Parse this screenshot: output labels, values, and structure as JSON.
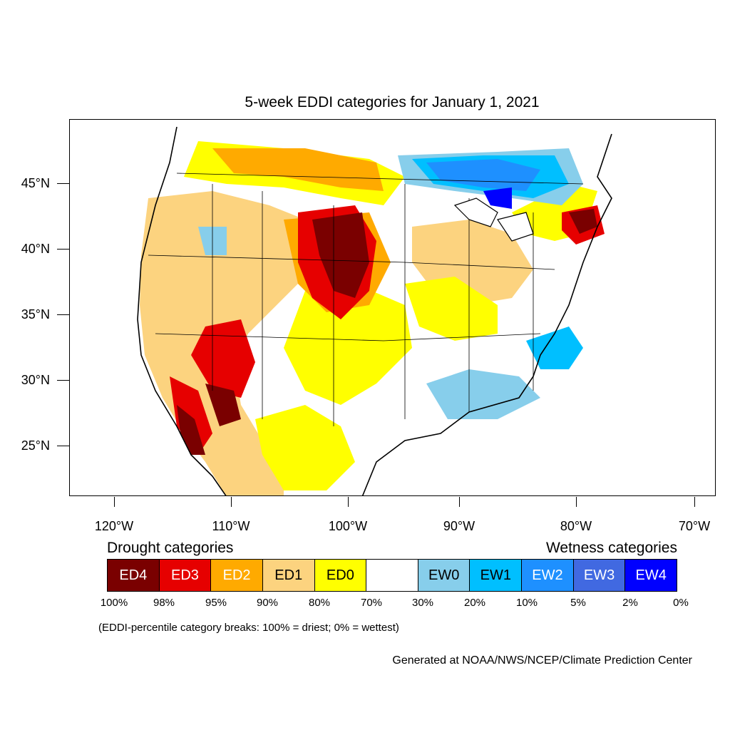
{
  "title": "5-week EDDI categories for January 1, 2021",
  "lat_labels": [
    "45°N",
    "40°N",
    "35°N",
    "30°N",
    "25°N"
  ],
  "lon_labels": [
    "120°W",
    "110°W",
    "100°W",
    "90°W",
    "80°W",
    "70°W"
  ],
  "drought_heading": "Drought categories",
  "wetness_heading": "Wetness categories",
  "categories": [
    {
      "label": "ED4",
      "color": "#7a0000",
      "text_color": "#ffffff"
    },
    {
      "label": "ED3",
      "color": "#e60000",
      "text_color": "#ffffff"
    },
    {
      "label": "ED2",
      "color": "#ffaa00",
      "text_color": "#ffffff"
    },
    {
      "label": "ED1",
      "color": "#fcd37f",
      "text_color": "#000000"
    },
    {
      "label": "ED0",
      "color": "#ffff00",
      "text_color": "#000000"
    },
    {
      "label": "",
      "color": "#ffffff",
      "text_color": "#000000"
    },
    {
      "label": "EW0",
      "color": "#87ceeb",
      "text_color": "#000000"
    },
    {
      "label": "EW1",
      "color": "#00bfff",
      "text_color": "#000000"
    },
    {
      "label": "EW2",
      "color": "#1e90ff",
      "text_color": "#ffffff"
    },
    {
      "label": "EW3",
      "color": "#4169e1",
      "text_color": "#ffffff"
    },
    {
      "label": "EW4",
      "color": "#0000ff",
      "text_color": "#ffffff"
    }
  ],
  "percent_breaks": [
    "100%",
    "98%",
    "95%",
    "90%",
    "80%",
    "70%",
    "30%",
    "20%",
    "10%",
    "5%",
    "2%",
    "0%"
  ],
  "note": "(EDDI-percentile category breaks: 100% = driest; 0% = wettest)",
  "credit": "Generated at NOAA/NWS/NCEP/Climate Prediction Center"
}
